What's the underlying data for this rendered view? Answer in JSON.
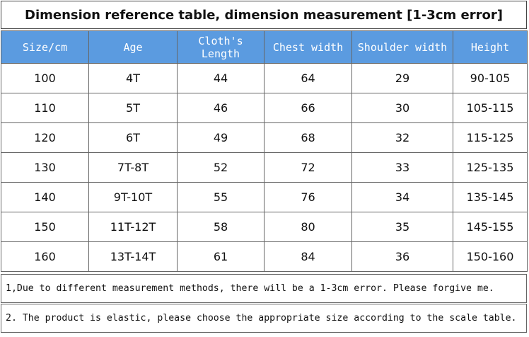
{
  "title": "Dimension reference table, dimension measurement [1-3cm error]",
  "table": {
    "headers": [
      "Size/cm",
      "Age",
      "Cloth's Length",
      "Chest  width",
      "Shoulder  width",
      "Height"
    ],
    "rows": [
      [
        "100",
        "4T",
        "44",
        "64",
        "29",
        "90-105"
      ],
      [
        "110",
        "5T",
        "46",
        "66",
        "30",
        "105-115"
      ],
      [
        "120",
        "6T",
        "49",
        "68",
        "32",
        "115-125"
      ],
      [
        "130",
        "7T-8T",
        "52",
        "72",
        "33",
        "125-135"
      ],
      [
        "140",
        "9T-10T",
        "55",
        "76",
        "34",
        "135-145"
      ],
      [
        "150",
        "11T-12T",
        "58",
        "80",
        "35",
        "145-155"
      ],
      [
        "160",
        "13T-14T",
        "61",
        "84",
        "36",
        "150-160"
      ]
    ]
  },
  "notes": [
    "1,Due to different measurement methods, there will be a 1-3cm error. Please forgive me.",
    "2. The product is elastic, please choose the appropriate size according to the scale table."
  ]
}
